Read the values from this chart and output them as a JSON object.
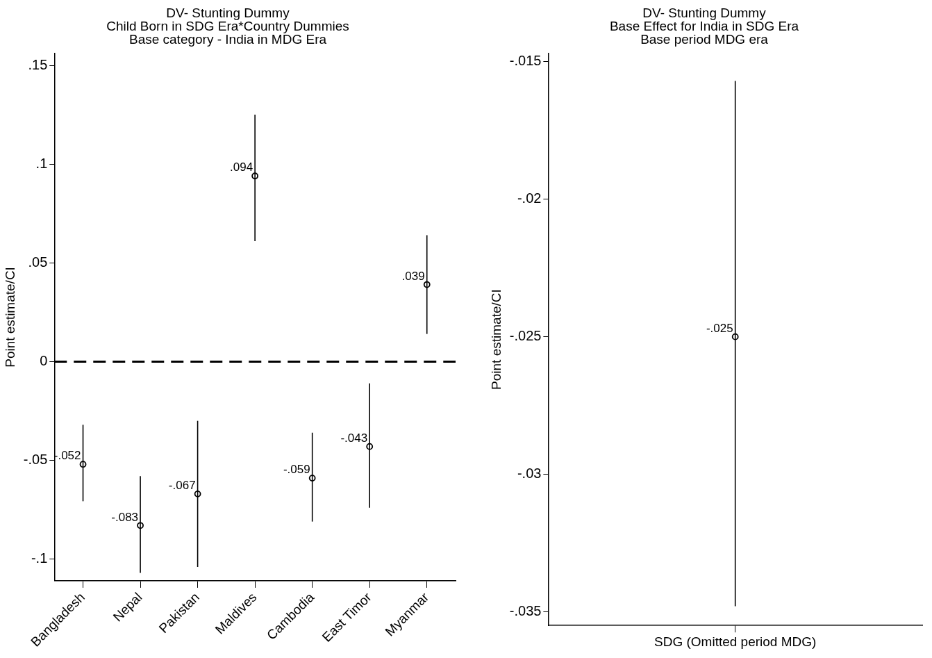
{
  "chart_data": [
    {
      "type": "scatter",
      "title": "DV- Stunting Dummy\nChild Born in SDG Era*Country Dummies\nBase category - India in MDG Era",
      "ylabel": "Point estimate/CI",
      "categories": [
        "Bangladesh",
        "Nepal",
        "Pakistan",
        "Maldives",
        "Cambodia",
        "East Timor",
        "Myanmar"
      ],
      "series": [
        {
          "color": "#000000",
          "values": [
            -0.052,
            -0.083,
            -0.067,
            0.094,
            -0.059,
            -0.043,
            0.039
          ],
          "errors": [
            [
              -0.0707,
              -0.032
            ],
            [
              -0.107,
              -0.058
            ],
            [
              -0.104,
              -0.03
            ],
            [
              0.061,
              0.125
            ],
            [
              -0.081,
              -0.036
            ],
            [
              -0.074,
              -0.011
            ],
            [
              0.014,
              0.064
            ]
          ],
          "value_labels": [
            "-.052",
            "-.083",
            "-.067",
            ".094",
            "-.059",
            "-.043",
            ".039"
          ]
        }
      ],
      "ylim": [
        -0.111,
        0.156
      ],
      "yticks": [
        {
          "value": -0.1,
          "label": "-.1"
        },
        {
          "value": -0.05,
          "label": "-.05"
        },
        0,
        {
          "value": 0.05,
          "label": ".05"
        },
        {
          "value": 0.1,
          "label": ".1"
        },
        {
          "value": 0.15,
          "label": ".15"
        }
      ],
      "ref_lines": [
        {
          "axis": "y",
          "value": 0,
          "color": "#000000",
          "line_style": "dashed"
        }
      ],
      "marker": "circle",
      "legend": false
    },
    {
      "type": "scatter",
      "title": "DV- Stunting Dummy\nBase Effect for India in SDG Era\nBase period MDG era",
      "ylabel": "Point estimate/CI",
      "categories": [
        "SDG (Omitted period MDG)"
      ],
      "series": [
        {
          "color": "#000000",
          "values": [
            -0.025
          ],
          "errors": [
            [
              -0.0348,
              -0.0157
            ]
          ],
          "value_labels": [
            "-.025"
          ]
        }
      ],
      "ylim": [
        -0.0355,
        -0.0147
      ],
      "yticks": [
        {
          "value": -0.035,
          "label": "-.035"
        },
        {
          "value": -0.03,
          "label": "-.03"
        },
        {
          "value": -0.025,
          "label": "-.025"
        },
        {
          "value": -0.02,
          "label": "-.02"
        },
        {
          "value": -0.015,
          "label": "-.015"
        }
      ],
      "marker": "circle",
      "legend": false
    }
  ]
}
